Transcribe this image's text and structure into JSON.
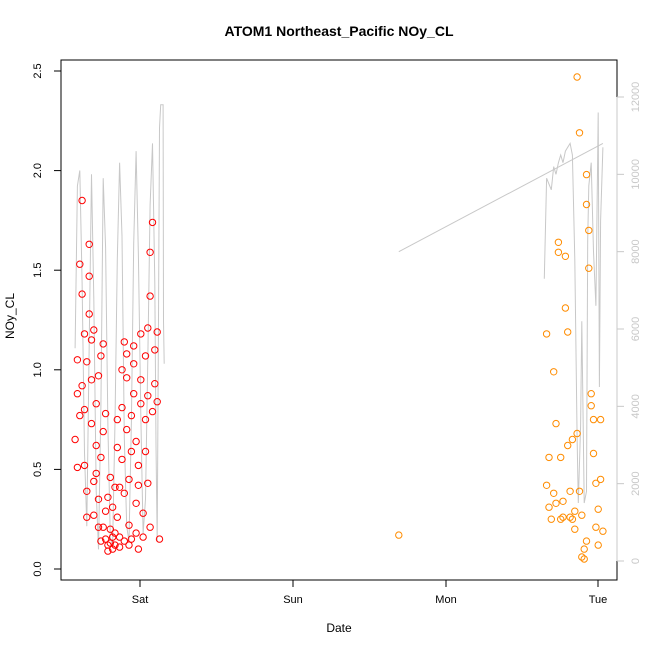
{
  "chart_data": {
    "type": "scatter",
    "title": "ATOM1 Northeast_Pacific NOy_CL",
    "xlabel": "Date",
    "ylabel": "NOy_CL",
    "x_ticks": [
      "Sat",
      "Sun",
      "Mon",
      "Tue"
    ],
    "ylim": [
      0,
      2.5
    ],
    "y_ticks": [
      "0.0",
      "0.5",
      "1.0",
      "1.5",
      "2.0",
      "2.5"
    ],
    "y2lim": [
      0,
      12000
    ],
    "y2_ticks": [
      "0",
      "2000",
      "4000",
      "6000",
      "8000",
      "10000",
      "12000"
    ],
    "colors": {
      "series_a": "#ff0000",
      "series_b": "#ff8c00",
      "altitude_line": "#c8c8c8",
      "axis": "#000000",
      "axis_right": "#c8c8c8"
    },
    "series": [
      {
        "values": [
          {
            "x": -0.38,
            "y": 0.65
          },
          {
            "x": -0.37,
            "y": 0.51
          },
          {
            "x": -0.37,
            "y": 0.88
          },
          {
            "x": -0.37,
            "y": 1.05
          },
          {
            "x": -0.36,
            "y": 1.53
          },
          {
            "x": -0.36,
            "y": 0.77
          },
          {
            "x": -0.35,
            "y": 1.38
          },
          {
            "x": -0.35,
            "y": 1.85
          },
          {
            "x": -0.35,
            "y": 0.92
          },
          {
            "x": -0.34,
            "y": 1.18
          },
          {
            "x": -0.34,
            "y": 0.8
          },
          {
            "x": -0.34,
            "y": 0.52
          },
          {
            "x": -0.33,
            "y": 0.39
          },
          {
            "x": -0.33,
            "y": 0.26
          },
          {
            "x": -0.33,
            "y": 1.04
          },
          {
            "x": -0.32,
            "y": 1.28
          },
          {
            "x": -0.32,
            "y": 1.47
          },
          {
            "x": -0.32,
            "y": 1.63
          },
          {
            "x": -0.31,
            "y": 0.73
          },
          {
            "x": -0.31,
            "y": 0.95
          },
          {
            "x": -0.31,
            "y": 1.15
          },
          {
            "x": -0.3,
            "y": 0.44
          },
          {
            "x": -0.3,
            "y": 0.27
          },
          {
            "x": -0.3,
            "y": 1.2
          },
          {
            "x": -0.29,
            "y": 0.62
          },
          {
            "x": -0.29,
            "y": 0.48
          },
          {
            "x": -0.29,
            "y": 0.83
          },
          {
            "x": -0.28,
            "y": 0.97
          },
          {
            "x": -0.28,
            "y": 0.35
          },
          {
            "x": -0.28,
            "y": 0.21
          },
          {
            "x": -0.27,
            "y": 0.14
          },
          {
            "x": -0.27,
            "y": 1.07
          },
          {
            "x": -0.27,
            "y": 0.56
          },
          {
            "x": -0.26,
            "y": 1.13
          },
          {
            "x": -0.26,
            "y": 0.21
          },
          {
            "x": -0.26,
            "y": 0.69
          },
          {
            "x": -0.25,
            "y": 0.29
          },
          {
            "x": -0.25,
            "y": 0.15
          },
          {
            "x": -0.25,
            "y": 0.78
          },
          {
            "x": -0.24,
            "y": 0.36
          },
          {
            "x": -0.24,
            "y": 0.12
          },
          {
            "x": -0.24,
            "y": 0.09
          },
          {
            "x": -0.23,
            "y": 0.2
          },
          {
            "x": -0.23,
            "y": 0.46
          },
          {
            "x": -0.23,
            "y": 0.13
          },
          {
            "x": -0.22,
            "y": 0.31
          },
          {
            "x": -0.22,
            "y": 0.16
          },
          {
            "x": -0.22,
            "y": 0.1
          },
          {
            "x": -0.21,
            "y": 0.41
          },
          {
            "x": -0.21,
            "y": 0.18
          },
          {
            "x": -0.21,
            "y": 0.12
          },
          {
            "x": -0.2,
            "y": 0.26
          },
          {
            "x": -0.2,
            "y": 0.61
          },
          {
            "x": -0.2,
            "y": 0.75
          },
          {
            "x": -0.19,
            "y": 0.16
          },
          {
            "x": -0.19,
            "y": 0.11
          },
          {
            "x": -0.19,
            "y": 0.41
          },
          {
            "x": -0.18,
            "y": 0.55
          },
          {
            "x": -0.18,
            "y": 0.81
          },
          {
            "x": -0.18,
            "y": 1.0
          },
          {
            "x": -0.17,
            "y": 1.14
          },
          {
            "x": -0.17,
            "y": 0.38
          },
          {
            "x": -0.17,
            "y": 0.14
          },
          {
            "x": -0.16,
            "y": 0.96
          },
          {
            "x": -0.16,
            "y": 1.08
          },
          {
            "x": -0.16,
            "y": 0.7
          },
          {
            "x": -0.15,
            "y": 0.45
          },
          {
            "x": -0.15,
            "y": 0.22
          },
          {
            "x": -0.15,
            "y": 0.12
          },
          {
            "x": -0.14,
            "y": 0.15
          },
          {
            "x": -0.14,
            "y": 0.59
          },
          {
            "x": -0.14,
            "y": 0.77
          },
          {
            "x": -0.13,
            "y": 0.88
          },
          {
            "x": -0.13,
            "y": 1.12
          },
          {
            "x": -0.13,
            "y": 1.03
          },
          {
            "x": -0.12,
            "y": 0.64
          },
          {
            "x": -0.12,
            "y": 0.33
          },
          {
            "x": -0.12,
            "y": 0.18
          },
          {
            "x": -0.11,
            "y": 0.1
          },
          {
            "x": -0.11,
            "y": 0.42
          },
          {
            "x": -0.11,
            "y": 0.52
          },
          {
            "x": -0.1,
            "y": 0.83
          },
          {
            "x": -0.1,
            "y": 1.18
          },
          {
            "x": -0.1,
            "y": 0.95
          },
          {
            "x": -0.09,
            "y": 0.28
          },
          {
            "x": -0.09,
            "y": 0.16
          },
          {
            "x": -0.08,
            "y": 0.59
          },
          {
            "x": -0.08,
            "y": 0.75
          },
          {
            "x": -0.08,
            "y": 1.07
          },
          {
            "x": -0.07,
            "y": 1.21
          },
          {
            "x": -0.07,
            "y": 0.87
          },
          {
            "x": -0.07,
            "y": 0.43
          },
          {
            "x": -0.06,
            "y": 0.21
          },
          {
            "x": -0.06,
            "y": 1.59
          },
          {
            "x": -0.06,
            "y": 1.37
          },
          {
            "x": -0.05,
            "y": 1.74
          },
          {
            "x": -0.05,
            "y": 0.79
          },
          {
            "x": -0.04,
            "y": 0.93
          },
          {
            "x": -0.04,
            "y": 1.1
          },
          {
            "x": -0.03,
            "y": 1.19
          },
          {
            "x": -0.03,
            "y": 0.84
          },
          {
            "x": -0.02,
            "y": 0.15
          }
        ]
      },
      {
        "values": [
          {
            "x": 1.0,
            "y": 0.17
          },
          {
            "x": 1.63,
            "y": 1.18
          },
          {
            "x": 1.63,
            "y": 0.42
          },
          {
            "x": 1.64,
            "y": 0.56
          },
          {
            "x": 1.64,
            "y": 0.31
          },
          {
            "x": 1.65,
            "y": 0.25
          },
          {
            "x": 1.66,
            "y": 0.99
          },
          {
            "x": 1.66,
            "y": 0.38
          },
          {
            "x": 1.67,
            "y": 0.33
          },
          {
            "x": 1.67,
            "y": 0.73
          },
          {
            "x": 1.68,
            "y": 1.59
          },
          {
            "x": 1.68,
            "y": 1.64
          },
          {
            "x": 1.69,
            "y": 0.56
          },
          {
            "x": 1.69,
            "y": 0.25
          },
          {
            "x": 1.7,
            "y": 0.34
          },
          {
            "x": 1.7,
            "y": 0.26
          },
          {
            "x": 1.71,
            "y": 1.31
          },
          {
            "x": 1.71,
            "y": 1.57
          },
          {
            "x": 1.72,
            "y": 1.19
          },
          {
            "x": 1.72,
            "y": 0.62
          },
          {
            "x": 1.73,
            "y": 0.39
          },
          {
            "x": 1.73,
            "y": 0.26
          },
          {
            "x": 1.74,
            "y": 0.65
          },
          {
            "x": 1.74,
            "y": 0.25
          },
          {
            "x": 1.75,
            "y": 0.29
          },
          {
            "x": 1.75,
            "y": 0.2
          },
          {
            "x": 1.76,
            "y": 0.68
          },
          {
            "x": 1.76,
            "y": 2.47
          },
          {
            "x": 1.77,
            "y": 2.19
          },
          {
            "x": 1.77,
            "y": 0.39
          },
          {
            "x": 1.78,
            "y": 0.27
          },
          {
            "x": 1.78,
            "y": 0.06
          },
          {
            "x": 1.79,
            "y": 0.05
          },
          {
            "x": 1.79,
            "y": 0.1
          },
          {
            "x": 1.8,
            "y": 1.98
          },
          {
            "x": 1.8,
            "y": 1.83
          },
          {
            "x": 1.8,
            "y": 0.14
          },
          {
            "x": 1.81,
            "y": 1.7
          },
          {
            "x": 1.81,
            "y": 1.51
          },
          {
            "x": 1.82,
            "y": 0.82
          },
          {
            "x": 1.82,
            "y": 0.88
          },
          {
            "x": 1.83,
            "y": 0.75
          },
          {
            "x": 1.83,
            "y": 0.58
          },
          {
            "x": 1.84,
            "y": 0.43
          },
          {
            "x": 1.84,
            "y": 0.21
          },
          {
            "x": 1.85,
            "y": 0.12
          },
          {
            "x": 1.85,
            "y": 0.3
          },
          {
            "x": 1.86,
            "y": 0.45
          },
          {
            "x": 1.86,
            "y": 0.75
          },
          {
            "x": 1.87,
            "y": 0.19
          }
        ]
      }
    ],
    "secondary_series": {
      "axis": "right",
      "style": "line",
      "values": [
        {
          "x": -0.38,
          "y": 5500
        },
        {
          "x": -0.37,
          "y": 9700
        },
        {
          "x": -0.36,
          "y": 10100
        },
        {
          "x": -0.35,
          "y": 7200
        },
        {
          "x": -0.34,
          "y": 2800
        },
        {
          "x": -0.33,
          "y": 900
        },
        {
          "x": -0.32,
          "y": 5600
        },
        {
          "x": -0.31,
          "y": 10000
        },
        {
          "x": -0.3,
          "y": 6800
        },
        {
          "x": -0.29,
          "y": 1800
        },
        {
          "x": -0.28,
          "y": 300
        },
        {
          "x": -0.27,
          "y": 4000
        },
        {
          "x": -0.26,
          "y": 9900
        },
        {
          "x": -0.25,
          "y": 8100
        },
        {
          "x": -0.24,
          "y": 3500
        },
        {
          "x": -0.23,
          "y": 600
        },
        {
          "x": -0.22,
          "y": 400
        },
        {
          "x": -0.21,
          "y": 3600
        },
        {
          "x": -0.2,
          "y": 7800
        },
        {
          "x": -0.19,
          "y": 10300
        },
        {
          "x": -0.18,
          "y": 8400
        },
        {
          "x": -0.17,
          "y": 3200
        },
        {
          "x": -0.16,
          "y": 900
        },
        {
          "x": -0.15,
          "y": 500
        },
        {
          "x": -0.14,
          "y": 3600
        },
        {
          "x": -0.13,
          "y": 8200
        },
        {
          "x": -0.12,
          "y": 10600
        },
        {
          "x": -0.11,
          "y": 7900
        },
        {
          "x": -0.1,
          "y": 3800
        },
        {
          "x": -0.09,
          "y": 700
        },
        {
          "x": -0.08,
          "y": 1600
        },
        {
          "x": -0.07,
          "y": 5200
        },
        {
          "x": -0.06,
          "y": 9200
        },
        {
          "x": -0.05,
          "y": 10800
        },
        {
          "x": -0.04,
          "y": 7200
        },
        {
          "x": -0.035,
          "y": 3000
        },
        {
          "x": -0.03,
          "y": 500
        },
        {
          "x": -0.025,
          "y": 5800
        },
        {
          "x": -0.02,
          "y": 11200
        },
        {
          "x": -0.015,
          "y": 11800
        },
        {
          "x": -0.005,
          "y": 11800
        },
        {
          "x": -0.003,
          "y": 6200
        },
        {
          "x": 0.0,
          "y": 5100
        },
        {
          "x": 1.62,
          "y": 7300
        },
        {
          "x": 1.63,
          "y": 9900
        },
        {
          "x": 1.65,
          "y": 9600
        },
        {
          "x": 1.66,
          "y": 10200
        },
        {
          "x": 1.67,
          "y": 10000
        },
        {
          "x": 1.68,
          "y": 10300
        },
        {
          "x": 1.69,
          "y": 10500
        },
        {
          "x": 1.7,
          "y": 10300
        },
        {
          "x": 1.71,
          "y": 10600
        },
        {
          "x": 1.73,
          "y": 10800
        },
        {
          "x": 1.74,
          "y": 10500
        },
        {
          "x": 1.75,
          "y": 7800
        },
        {
          "x": 1.76,
          "y": 3200
        },
        {
          "x": 1.765,
          "y": 1500
        },
        {
          "x": 1.775,
          "y": 3500
        },
        {
          "x": 1.78,
          "y": 6200
        },
        {
          "x": 1.785,
          "y": 3900
        },
        {
          "x": 1.79,
          "y": 1500
        },
        {
          "x": 1.8,
          "y": 1800
        },
        {
          "x": 1.805,
          "y": 8300
        },
        {
          "x": 1.81,
          "y": 9700
        },
        {
          "x": 1.82,
          "y": 10300
        },
        {
          "x": 1.83,
          "y": 8000
        },
        {
          "x": 1.84,
          "y": 6600
        },
        {
          "x": 1.85,
          "y": 11600
        },
        {
          "x": 1.855,
          "y": 4500
        },
        {
          "x": 1.86,
          "y": 8800
        },
        {
          "x": 1.87,
          "y": 10700
        },
        {
          "x": 1.0,
          "y": 8000
        },
        {
          "x": 1.87,
          "y": 10800
        }
      ]
    }
  }
}
